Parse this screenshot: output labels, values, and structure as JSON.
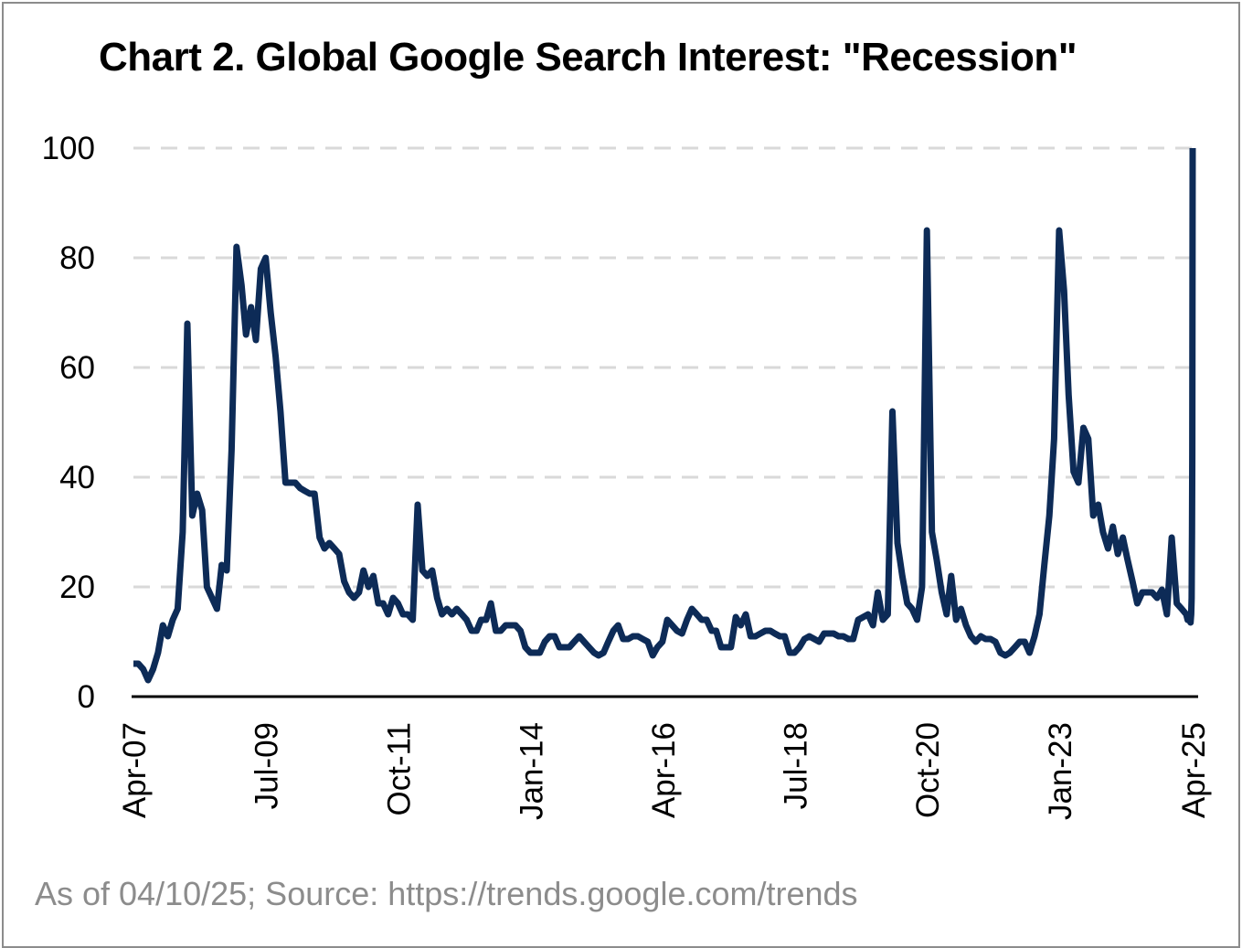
{
  "chart_data": {
    "type": "line",
    "title": "Chart 2. Global Google Search Interest: \"Recession\"",
    "xlabel": "",
    "ylabel": "",
    "ylim": [
      0,
      100
    ],
    "yticks": [
      0,
      20,
      40,
      60,
      80,
      100
    ],
    "xlim": [
      "2007-04",
      "2025-04"
    ],
    "x_tick_labels": [
      "Apr-07",
      "Jul-09",
      "Oct-11",
      "Jan-14",
      "Apr-16",
      "Jul-18",
      "Oct-20",
      "Jan-23",
      "Apr-25"
    ],
    "grid": "horizontal dashed",
    "legend": "none",
    "colors": {
      "line": "#0d2b57",
      "grid": "#d9d9d9",
      "axis": "#000000"
    },
    "series": [
      {
        "points": [
          [
            "2007-04",
            6
          ],
          [
            "2007-05",
            6
          ],
          [
            "2007-06",
            5
          ],
          [
            "2007-07",
            3
          ],
          [
            "2007-08",
            5
          ],
          [
            "2007-09",
            8
          ],
          [
            "2007-10",
            13
          ],
          [
            "2007-11",
            11
          ],
          [
            "2007-12",
            14
          ],
          [
            "2008-01",
            16
          ],
          [
            "2008-02",
            30
          ],
          [
            "2008-03",
            68
          ],
          [
            "2008-04",
            33
          ],
          [
            "2008-05",
            37
          ],
          [
            "2008-06",
            34
          ],
          [
            "2008-07",
            20
          ],
          [
            "2008-08",
            18
          ],
          [
            "2008-09",
            16
          ],
          [
            "2008-10",
            24
          ],
          [
            "2008-11",
            23
          ],
          [
            "2008-12",
            45
          ],
          [
            "2009-01",
            82
          ],
          [
            "2009-02",
            75
          ],
          [
            "2009-03",
            66
          ],
          [
            "2009-04",
            71
          ],
          [
            "2009-05",
            65
          ],
          [
            "2009-06",
            78
          ],
          [
            "2009-07",
            80
          ],
          [
            "2009-08",
            70
          ],
          [
            "2009-09",
            62
          ],
          [
            "2009-10",
            52
          ],
          [
            "2009-11",
            39
          ],
          [
            "2009-12",
            39
          ],
          [
            "2010-01",
            39
          ],
          [
            "2010-02",
            38
          ],
          [
            "2010-03",
            37.5
          ],
          [
            "2010-04",
            37
          ],
          [
            "2010-05",
            37
          ],
          [
            "2010-06",
            29
          ],
          [
            "2010-07",
            27
          ],
          [
            "2010-08",
            28
          ],
          [
            "2010-09",
            27
          ],
          [
            "2010-10",
            26
          ],
          [
            "2010-11",
            21
          ],
          [
            "2010-12",
            19
          ],
          [
            "2011-01",
            18
          ],
          [
            "2011-02",
            19
          ],
          [
            "2011-03",
            23
          ],
          [
            "2011-04",
            20
          ],
          [
            "2011-05",
            22
          ],
          [
            "2011-06",
            17
          ],
          [
            "2011-07",
            17
          ],
          [
            "2011-08",
            15
          ],
          [
            "2011-09",
            18
          ],
          [
            "2011-10",
            17
          ],
          [
            "2011-11",
            15
          ],
          [
            "2011-12",
            15
          ],
          [
            "2012-01",
            14
          ],
          [
            "2012-02",
            35
          ],
          [
            "2012-03",
            23
          ],
          [
            "2012-04",
            22
          ],
          [
            "2012-05",
            23
          ],
          [
            "2012-06",
            18
          ],
          [
            "2012-07",
            15
          ],
          [
            "2012-08",
            16
          ],
          [
            "2012-09",
            15
          ],
          [
            "2012-10",
            16
          ],
          [
            "2012-11",
            15
          ],
          [
            "2012-12",
            14
          ],
          [
            "2013-01",
            12
          ],
          [
            "2013-02",
            12
          ],
          [
            "2013-03",
            14
          ],
          [
            "2013-04",
            14
          ],
          [
            "2013-05",
            17
          ],
          [
            "2013-06",
            12
          ],
          [
            "2013-07",
            12
          ],
          [
            "2013-08",
            13
          ],
          [
            "2013-09",
            13
          ],
          [
            "2013-10",
            13
          ],
          [
            "2013-11",
            12
          ],
          [
            "2013-12",
            9
          ],
          [
            "2014-01",
            8
          ],
          [
            "2014-02",
            8
          ],
          [
            "2014-03",
            8
          ],
          [
            "2014-04",
            10
          ],
          [
            "2014-05",
            11
          ],
          [
            "2014-06",
            11
          ],
          [
            "2014-07",
            9
          ],
          [
            "2014-08",
            9
          ],
          [
            "2014-09",
            9
          ],
          [
            "2014-10",
            10
          ],
          [
            "2014-11",
            11
          ],
          [
            "2014-12",
            10
          ],
          [
            "2015-01",
            9
          ],
          [
            "2015-02",
            8
          ],
          [
            "2015-03",
            7.5
          ],
          [
            "2015-04",
            8
          ],
          [
            "2015-05",
            10
          ],
          [
            "2015-06",
            12
          ],
          [
            "2015-07",
            13
          ],
          [
            "2015-08",
            10.5
          ],
          [
            "2015-09",
            10.5
          ],
          [
            "2015-10",
            11
          ],
          [
            "2015-11",
            11
          ],
          [
            "2015-12",
            10.5
          ],
          [
            "2016-01",
            10
          ],
          [
            "2016-02",
            7.5
          ],
          [
            "2016-03",
            9
          ],
          [
            "2016-04",
            10
          ],
          [
            "2016-05",
            14
          ],
          [
            "2016-06",
            13
          ],
          [
            "2016-07",
            12
          ],
          [
            "2016-08",
            11.5
          ],
          [
            "2016-09",
            14
          ],
          [
            "2016-10",
            16
          ],
          [
            "2016-11",
            15
          ],
          [
            "2016-12",
            14
          ],
          [
            "2017-01",
            14
          ],
          [
            "2017-02",
            12
          ],
          [
            "2017-03",
            12
          ],
          [
            "2017-04",
            9
          ],
          [
            "2017-05",
            9
          ],
          [
            "2017-06",
            9
          ],
          [
            "2017-07",
            14.5
          ],
          [
            "2017-08",
            13
          ],
          [
            "2017-09",
            15
          ],
          [
            "2017-10",
            11
          ],
          [
            "2017-11",
            11
          ],
          [
            "2017-12",
            11.5
          ],
          [
            "2018-01",
            12
          ],
          [
            "2018-02",
            12
          ],
          [
            "2018-03",
            11.5
          ],
          [
            "2018-04",
            11
          ],
          [
            "2018-05",
            11
          ],
          [
            "2018-06",
            8
          ],
          [
            "2018-07",
            8
          ],
          [
            "2018-08",
            9
          ],
          [
            "2018-09",
            10.5
          ],
          [
            "2018-10",
            11
          ],
          [
            "2018-11",
            10.5
          ],
          [
            "2018-12",
            10
          ],
          [
            "2019-01",
            11.5
          ],
          [
            "2019-02",
            11.5
          ],
          [
            "2019-03",
            11.5
          ],
          [
            "2019-04",
            11
          ],
          [
            "2019-05",
            11
          ],
          [
            "2019-06",
            10.5
          ],
          [
            "2019-07",
            10.5
          ],
          [
            "2019-08",
            14
          ],
          [
            "2019-09",
            14.5
          ],
          [
            "2019-10",
            15
          ],
          [
            "2019-11",
            13
          ],
          [
            "2019-12",
            19
          ],
          [
            "2020-01",
            14
          ],
          [
            "2020-02",
            15
          ],
          [
            "2020-03",
            52
          ],
          [
            "2020-04",
            28
          ],
          [
            "2020-05",
            22
          ],
          [
            "2020-06",
            17
          ],
          [
            "2020-07",
            16
          ],
          [
            "2020-08",
            14
          ],
          [
            "2020-09",
            20
          ],
          [
            "2020-10",
            85
          ],
          [
            "2020-11",
            30
          ],
          [
            "2020-12",
            25
          ],
          [
            "2021-01",
            19
          ],
          [
            "2021-02",
            15
          ],
          [
            "2021-03",
            22
          ],
          [
            "2021-04",
            14
          ],
          [
            "2021-05",
            16
          ],
          [
            "2021-06",
            13
          ],
          [
            "2021-07",
            11
          ],
          [
            "2021-08",
            10
          ],
          [
            "2021-09",
            11
          ],
          [
            "2021-10",
            10.5
          ],
          [
            "2021-11",
            10.5
          ],
          [
            "2021-12",
            10
          ],
          [
            "2022-01",
            8
          ],
          [
            "2022-02",
            7.5
          ],
          [
            "2022-03",
            8
          ],
          [
            "2022-04",
            9
          ],
          [
            "2022-05",
            10
          ],
          [
            "2022-06",
            10
          ],
          [
            "2022-07",
            8
          ],
          [
            "2022-08",
            11
          ],
          [
            "2022-09",
            15
          ],
          [
            "2022-10",
            24
          ],
          [
            "2022-11",
            33
          ],
          [
            "2022-12",
            47
          ],
          [
            "2023-01",
            85
          ],
          [
            "2023-02",
            74
          ],
          [
            "2023-03",
            55
          ],
          [
            "2023-04",
            41
          ],
          [
            "2023-05",
            39
          ],
          [
            "2023-06",
            49
          ],
          [
            "2023-07",
            47
          ],
          [
            "2023-08",
            33
          ],
          [
            "2023-09",
            35
          ],
          [
            "2023-10",
            30
          ],
          [
            "2023-11",
            27
          ],
          [
            "2023-12",
            31
          ],
          [
            "2024-01",
            26
          ],
          [
            "2024-02",
            29
          ],
          [
            "2024-03",
            25
          ],
          [
            "2024-04",
            21
          ],
          [
            "2024-05",
            17
          ],
          [
            "2024-06",
            19
          ],
          [
            "2024-07",
            19
          ],
          [
            "2024-08",
            19
          ],
          [
            "2024-09",
            18
          ],
          [
            "2024-10",
            19.5
          ],
          [
            "2024-11",
            15
          ],
          [
            "2024-12",
            29
          ],
          [
            "2025-01",
            17
          ],
          [
            "2025-02",
            16
          ],
          [
            "2025-03",
            15
          ]
        ]
      }
    ],
    "series_end": [
      [
        "2025-03",
        15
      ],
      [
        "2025-03-10",
        14
      ],
      [
        "2025-03-20",
        14
      ],
      [
        "2025-03-28",
        13.5
      ],
      [
        "2025-04-01",
        15
      ],
      [
        "2025-04-04",
        18
      ],
      [
        "2025-04-06",
        30
      ],
      [
        "2025-04-08",
        44
      ],
      [
        "2025-04-10",
        100
      ]
    ]
  },
  "source_note": "As of 04/10/25; Source: https://trends.google.com/trends"
}
